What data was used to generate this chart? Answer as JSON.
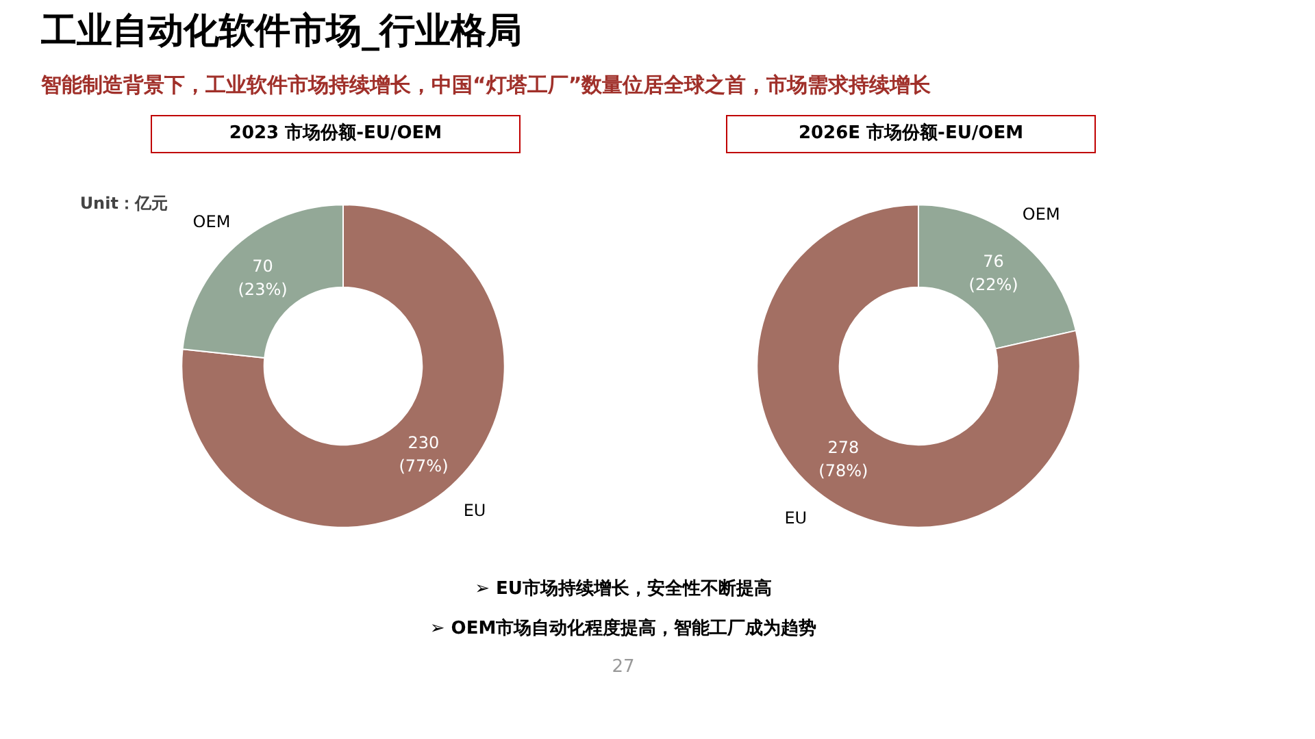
{
  "chart_data": [
    {
      "type": "donut",
      "title": "2023 市场份额-EU/OEM",
      "categories": [
        "EU",
        "OEM"
      ],
      "values": [
        230,
        70
      ],
      "colors": [
        "#a36f63",
        "#93a897"
      ],
      "value_labels": [
        "230\n(77%)",
        "70\n(23%)"
      ],
      "annotations": [
        "工业自动化软件市场_行业格局",
        "智能制造背景下，工业软件市场持续增长，中国“灯塔工厂”数量位居全球之首，市场需求持续增长",
        "Unit：亿元",
        "➢  EU市场持续增长，安全性不断提高",
        "➢  OEM市场自动化程度提高，智能工厂成为趋势",
        "27"
      ]
    },
    {
      "type": "donut",
      "title": "2026E 市场份额-EU/OEM",
      "categories": [
        "OEM",
        "EU"
      ],
      "values": [
        76,
        278
      ],
      "colors": [
        "#93a897",
        "#a36f63"
      ],
      "value_labels": [
        "76\n(22%)",
        "278\n(78%)"
      ]
    }
  ]
}
